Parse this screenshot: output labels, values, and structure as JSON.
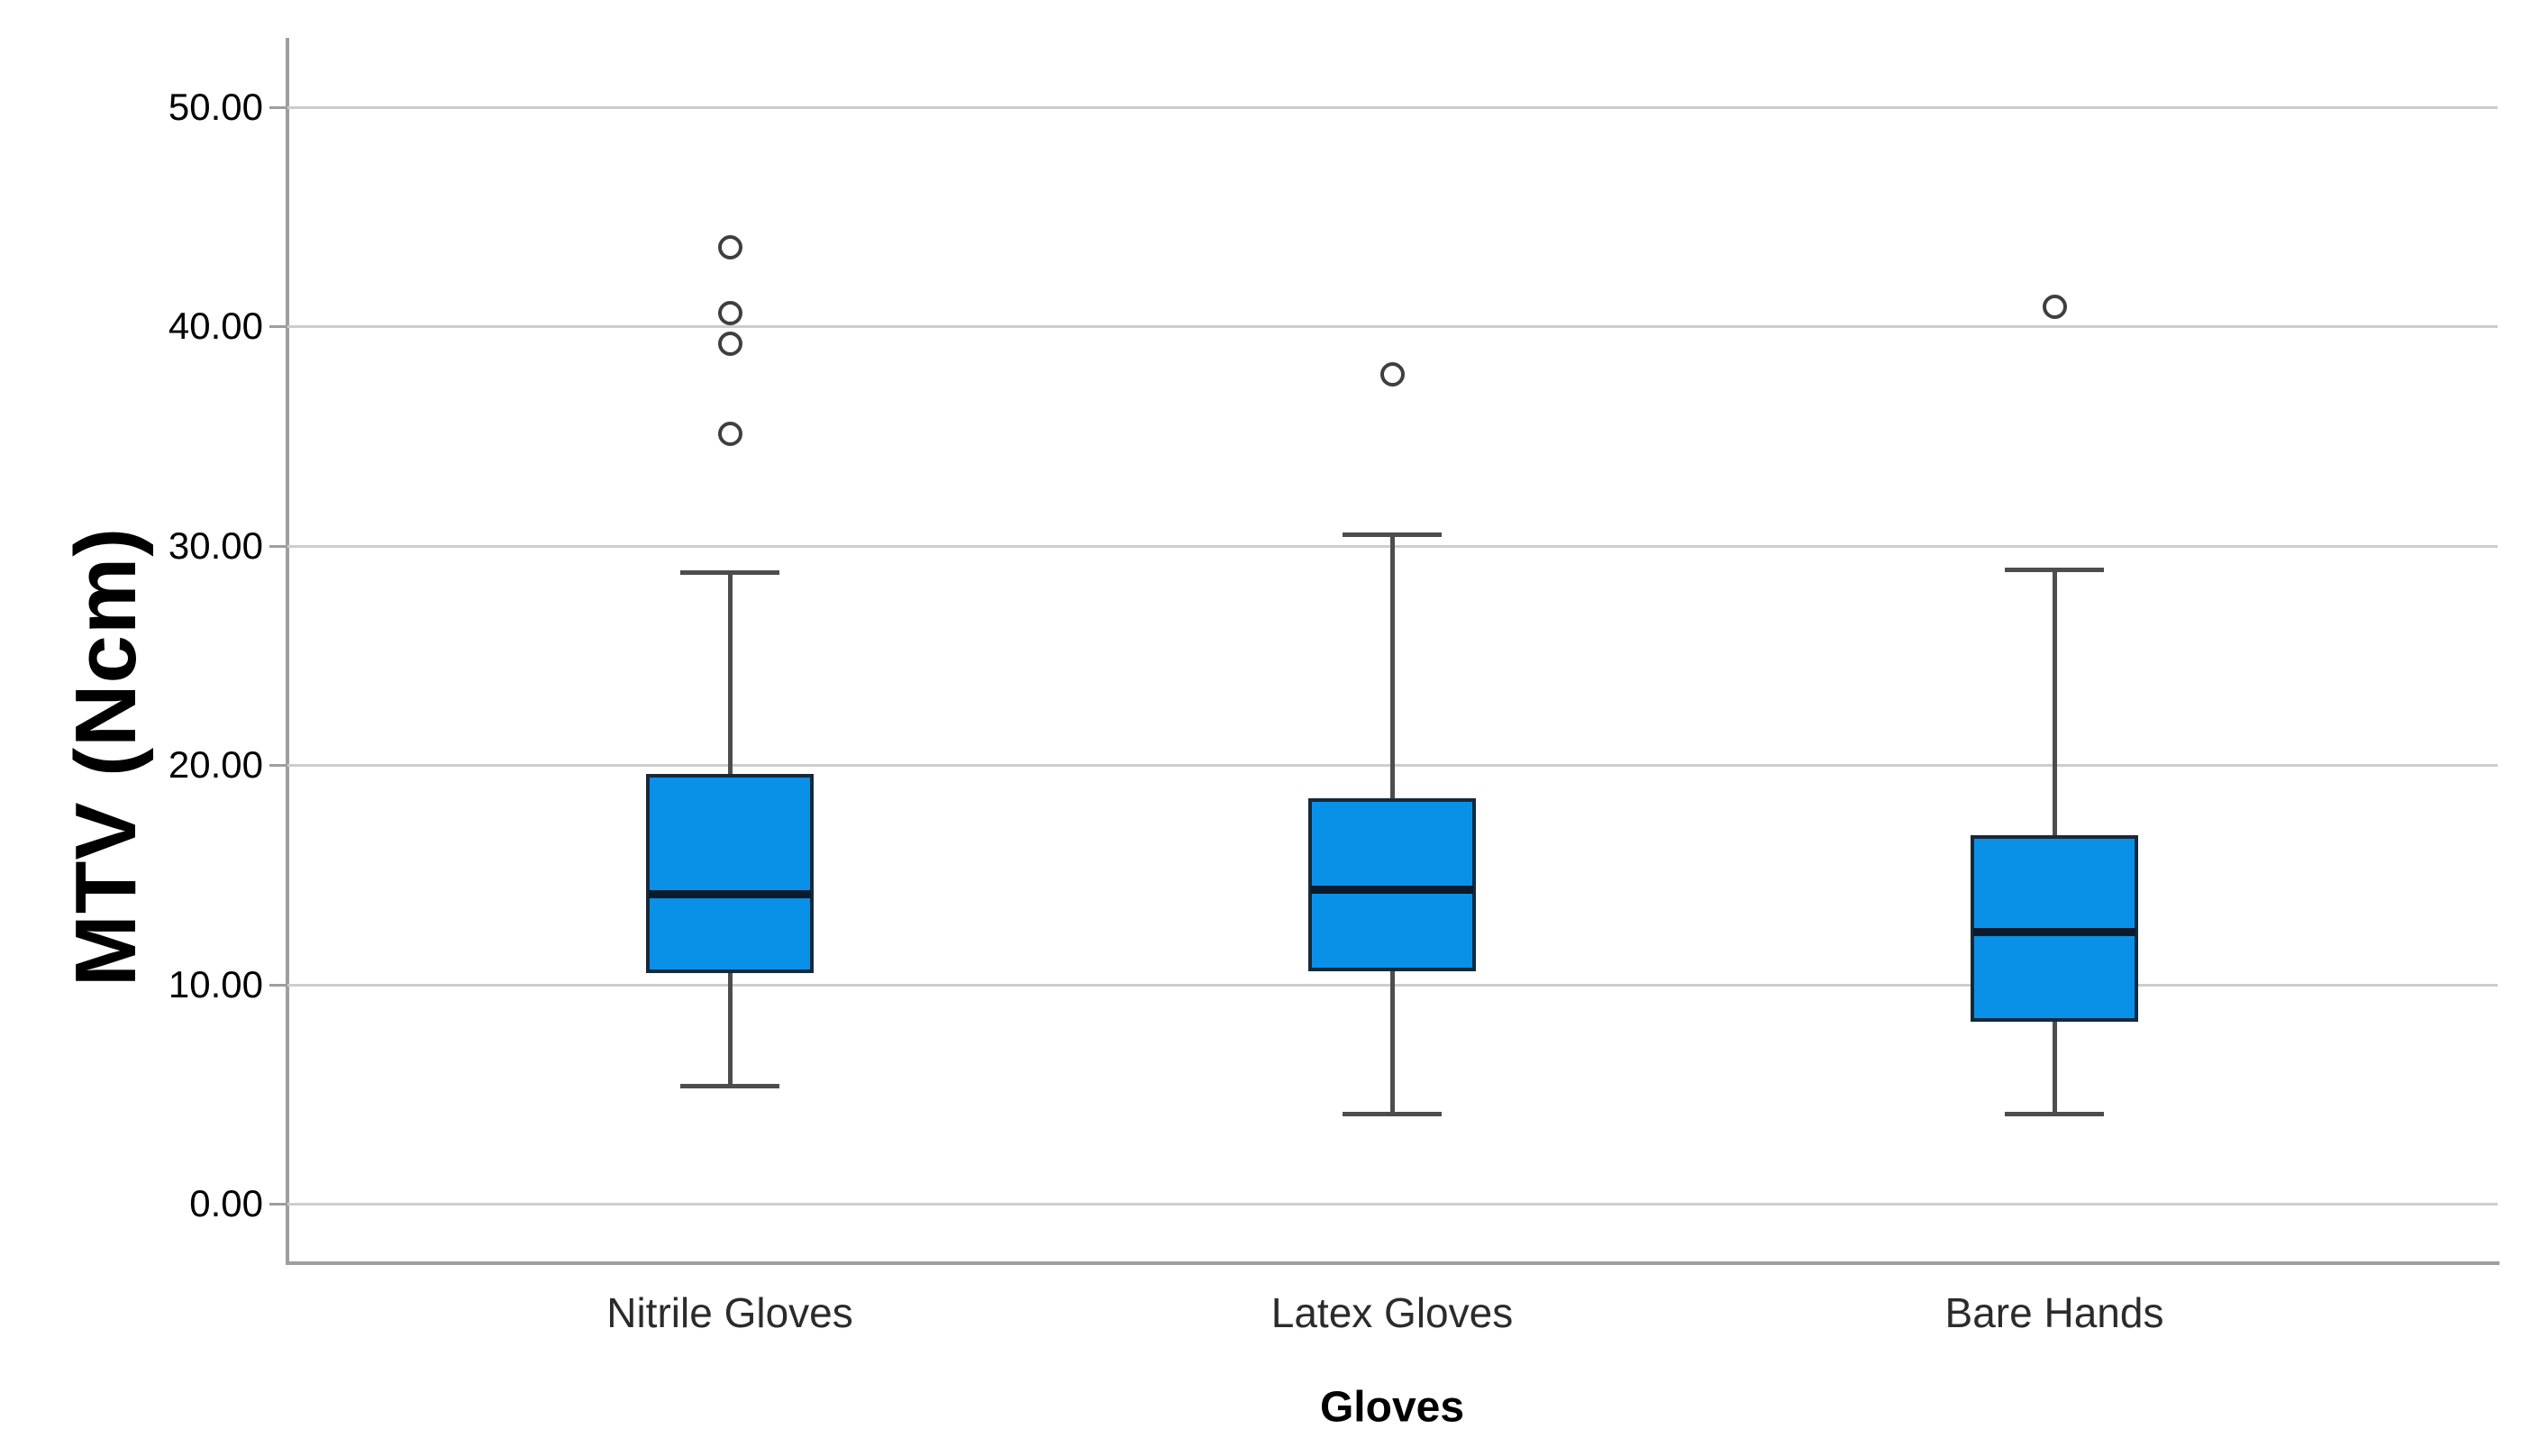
{
  "figure": {
    "background": "#ffffff"
  },
  "chart_data": {
    "type": "box",
    "title": "",
    "xlabel": "Gloves",
    "ylabel": "MTV (Ncm)",
    "categories": [
      "Nitrile Gloves",
      "Latex Gloves",
      "Bare Hands"
    ],
    "y_ticks": [
      0,
      10,
      20,
      30,
      40,
      50
    ],
    "y_tick_labels": [
      "0.00",
      "10.00",
      "20.00",
      "30.00",
      "40.00",
      "50.00"
    ],
    "ylim": [
      -2.7,
      53.1
    ],
    "grid": "horizontal-only",
    "legend": "none",
    "series": [
      {
        "name": "Nitrile Gloves",
        "whisker_low": 5.4,
        "q1": 10.5,
        "median": 14.1,
        "q3": 19.6,
        "whisker_high": 28.8,
        "outliers": [
          35.1,
          39.2,
          40.6,
          43.6
        ]
      },
      {
        "name": "Latex Gloves",
        "whisker_low": 4.1,
        "q1": 10.6,
        "median": 14.3,
        "q3": 18.5,
        "whisker_high": 30.5,
        "outliers": [
          37.8
        ]
      },
      {
        "name": "Bare Hands",
        "whisker_low": 4.1,
        "q1": 8.3,
        "median": 12.4,
        "q3": 16.8,
        "whisker_high": 28.9,
        "outliers": [
          40.9
        ]
      }
    ],
    "colors": {
      "box_fill": "#0991E8",
      "box_border": "#16293B",
      "median": "#0A1B2B",
      "whisker": "#4D4D4D",
      "outlier_ring": "#3F3F3F",
      "gridline": "#CDCDCD",
      "axis": "#9E9E9E",
      "tick_label": "#000000",
      "category_label": "#2B2B2B",
      "axis_title": "#000000"
    }
  }
}
